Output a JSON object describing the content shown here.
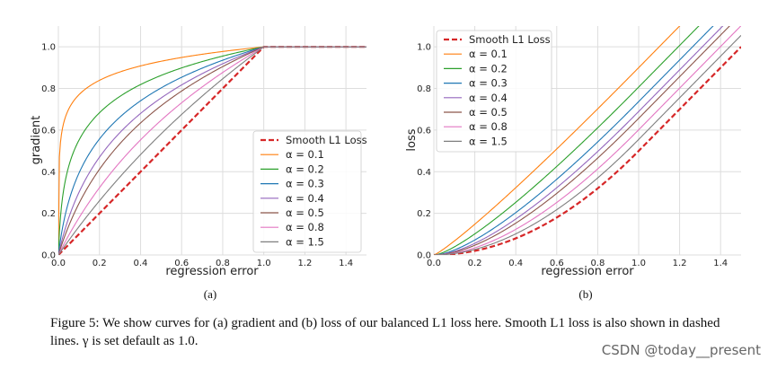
{
  "chart_data": [
    {
      "id": "a",
      "type": "line",
      "panel_label": "(a)",
      "xlabel": "regression error",
      "ylabel": "gradient",
      "xlim": [
        0,
        1.5
      ],
      "ylim": [
        0,
        1.1
      ],
      "xticks": [
        "0.0",
        "0.2",
        "0.4",
        "0.6",
        "0.8",
        "1.0",
        "1.2",
        "1.4"
      ],
      "yticks": [
        "0.0",
        "0.2",
        "0.4",
        "0.6",
        "0.8",
        "1.0"
      ],
      "legend_position": "lower-right",
      "series": [
        {
          "name": "Smooth L1 Loss",
          "alpha": null,
          "style": "dashed",
          "color": "#d62728"
        },
        {
          "name": "α = 0.1",
          "alpha": 0.1,
          "style": "solid",
          "color": "#ff7f0e"
        },
        {
          "name": "α = 0.2",
          "alpha": 0.2,
          "style": "solid",
          "color": "#2ca02c"
        },
        {
          "name": "α = 0.3",
          "alpha": 0.3,
          "style": "solid",
          "color": "#1f77b4"
        },
        {
          "name": "α = 0.4",
          "alpha": 0.4,
          "style": "solid",
          "color": "#9467bd"
        },
        {
          "name": "α = 0.5",
          "alpha": 0.5,
          "style": "solid",
          "color": "#8c564b"
        },
        {
          "name": "α = 0.8",
          "alpha": 0.8,
          "style": "solid",
          "color": "#e377c2"
        },
        {
          "name": "α = 1.5",
          "alpha": 1.5,
          "style": "solid",
          "color": "#7f7f7f"
        }
      ]
    },
    {
      "id": "b",
      "type": "line",
      "panel_label": "(b)",
      "xlabel": "regression error",
      "ylabel": "loss",
      "xlim": [
        0,
        1.5
      ],
      "ylim": [
        0,
        1.1
      ],
      "xticks": [
        "0.0",
        "0.2",
        "0.4",
        "0.6",
        "0.8",
        "1.0",
        "1.2",
        "1.4"
      ],
      "yticks": [
        "0.0",
        "0.2",
        "0.4",
        "0.6",
        "0.8",
        "1.0"
      ],
      "legend_position": "upper-left",
      "series": [
        {
          "name": "Smooth L1 Loss",
          "alpha": null,
          "style": "dashed",
          "color": "#d62728"
        },
        {
          "name": "α = 0.1",
          "alpha": 0.1,
          "style": "solid",
          "color": "#ff7f0e"
        },
        {
          "name": "α = 0.2",
          "alpha": 0.2,
          "style": "solid",
          "color": "#2ca02c"
        },
        {
          "name": "α = 0.3",
          "alpha": 0.3,
          "style": "solid",
          "color": "#1f77b4"
        },
        {
          "name": "α = 0.4",
          "alpha": 0.4,
          "style": "solid",
          "color": "#9467bd"
        },
        {
          "name": "α = 0.5",
          "alpha": 0.5,
          "style": "solid",
          "color": "#8c564b"
        },
        {
          "name": "α = 0.8",
          "alpha": 0.8,
          "style": "solid",
          "color": "#e377c2"
        },
        {
          "name": "α = 1.5",
          "alpha": 1.5,
          "style": "solid",
          "color": "#7f7f7f"
        }
      ]
    }
  ],
  "gamma": 1.0,
  "caption": {
    "line1": "Figure 5: We show curves for (a) gradient and (b) loss of our balanced L1 loss here. Smooth L1 loss is also shown in dashed",
    "line2": "lines. γ is set default as 1.0."
  },
  "watermark": "CSDN @today__present",
  "colors": {
    "grid": "#dddddd",
    "background": "#ffffff"
  }
}
